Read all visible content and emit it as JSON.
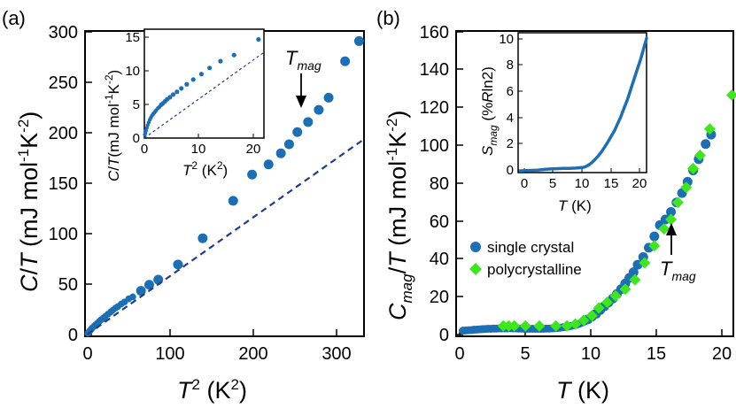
{
  "colors": {
    "single_crystal": "#1c6fb4",
    "polycrystalline": "#3ee61e",
    "fit_line": "#1f3d8c",
    "axis": "#000000"
  },
  "chart_data": [
    {
      "id": "a-main",
      "panel": "(a)",
      "type": "scatter",
      "xlabel": "T^2 (K^2)",
      "ylabel": "C/T (mJ mol^-1 K^-2)",
      "xlim": [
        -3,
        336
      ],
      "ylim": [
        -2,
        300
      ],
      "xticks": [
        "0",
        "100",
        "200",
        "300"
      ],
      "yticks": [
        "0",
        "50",
        "100",
        "150",
        "200",
        "250",
        "300"
      ],
      "annotation": {
        "text": "T_mag",
        "x": 254,
        "y": 226
      },
      "series": [
        {
          "name": "data",
          "marker": "circle",
          "x": [
            0.5,
            1,
            1.5,
            2,
            3,
            4,
            5,
            6,
            8,
            10,
            12,
            14,
            16,
            18,
            20,
            22,
            25,
            28,
            31,
            34,
            37,
            41,
            45,
            50,
            55,
            65,
            75,
            86,
            110,
            140,
            177,
            200,
            220,
            235,
            245,
            255,
            268,
            281,
            293,
            313,
            330
          ],
          "y": [
            1,
            1.5,
            2,
            2.5,
            3.5,
            4.5,
            5.5,
            6.5,
            8,
            9.5,
            11,
            12.5,
            14,
            15,
            16.5,
            18,
            20,
            22,
            24,
            26,
            27.5,
            30,
            32,
            35,
            37,
            43,
            49,
            54,
            69,
            95,
            132,
            158,
            168,
            179,
            188,
            200,
            210,
            222,
            234,
            270,
            290
          ]
        },
        {
          "name": "fit",
          "marker": "dashed-line",
          "x": [
            0,
            336
          ],
          "y": [
            0,
            193
          ]
        }
      ]
    },
    {
      "id": "a-inset",
      "panel": "(a) inset",
      "type": "scatter",
      "xlabel": "T^2 (K^2)",
      "ylabel": "C/T(mJ mol^-1 K^-2)",
      "xlim": [
        0,
        22
      ],
      "ylim": [
        0,
        16
      ],
      "xticks": [
        "0",
        "10",
        "20"
      ],
      "yticks": [
        "0",
        "5",
        "10",
        "15"
      ],
      "series": [
        {
          "name": "data",
          "marker": "circle",
          "x": [
            0.1,
            0.2,
            0.3,
            0.45,
            0.6,
            0.8,
            1.0,
            1.2,
            1.4,
            1.6,
            1.8,
            2.0,
            2.2,
            2.5,
            2.8,
            3.1,
            3.4,
            3.8,
            4.2,
            4.7,
            5.3,
            6.0,
            6.8,
            7.8,
            9.0,
            10.5,
            12.0,
            14.0,
            16.5,
            21.0
          ],
          "y": [
            0.5,
            0.8,
            1.1,
            1.5,
            1.9,
            2.3,
            2.7,
            3.0,
            3.3,
            3.5,
            3.7,
            3.9,
            4.1,
            4.4,
            4.6,
            4.9,
            5.1,
            5.4,
            5.7,
            6.0,
            6.4,
            6.8,
            7.3,
            7.9,
            8.6,
            9.4,
            10.3,
            11.3,
            12.2,
            14.5
          ]
        },
        {
          "name": "fit",
          "marker": "dashed-line",
          "x": [
            0,
            22
          ],
          "y": [
            0,
            12.6
          ]
        }
      ]
    },
    {
      "id": "b-main",
      "panel": "(b)",
      "type": "scatter",
      "xlabel": "T (K)",
      "ylabel": "C_mag/T (mJ mol^-1 K^-2)",
      "xlim": [
        0,
        20
      ],
      "ylim": [
        -2,
        160
      ],
      "xticks": [
        "0",
        "5",
        "10",
        "15",
        "20"
      ],
      "yticks": [
        "0",
        "20",
        "40",
        "60",
        "80",
        "100",
        "120",
        "140",
        "160"
      ],
      "annotation": {
        "text": "T_mag",
        "x": 16.2,
        "y": 58
      },
      "legend": {
        "placement": "middle-left",
        "entries": [
          "single crystal",
          "polycrystalline"
        ]
      },
      "series": [
        {
          "name": "single crystal",
          "marker": "circle",
          "x": [
            0.5,
            0.7,
            0.9,
            1.1,
            1.3,
            1.5,
            1.7,
            1.9,
            2.1,
            2.3,
            2.5,
            2.7,
            2.9,
            3.1,
            3.3,
            3.5,
            3.7,
            3.9,
            4.1,
            4.3,
            4.5,
            4.7,
            4.9,
            5.1,
            5.3,
            5.5,
            5.7,
            5.9,
            6.1,
            6.3,
            6.5,
            6.7,
            6.9,
            7.1,
            7.3,
            7.5,
            7.7,
            7.9,
            8.1,
            8.3,
            8.5,
            8.7,
            8.9,
            9.1,
            9.3,
            9.5,
            9.8,
            10.1,
            10.4,
            10.7,
            11.0,
            11.3,
            11.6,
            11.9,
            12.2,
            12.5,
            12.8,
            13.1,
            13.5,
            13.9,
            14.3,
            14.7,
            15.1,
            15.5,
            15.9,
            16.3,
            16.7,
            17.1,
            17.5,
            18.0,
            18.4
          ],
          "y": [
            1.0,
            1.1,
            1.2,
            1.3,
            1.5,
            1.6,
            1.7,
            1.8,
            1.9,
            2.0,
            2.0,
            2.1,
            2.1,
            2.2,
            2.2,
            2.2,
            2.2,
            2.3,
            2.2,
            2.2,
            2.1,
            2.1,
            2.0,
            2.0,
            2.0,
            2.0,
            2.0,
            2.0,
            2.0,
            2.0,
            2.1,
            2.1,
            2.2,
            2.3,
            2.4,
            2.6,
            2.8,
            3.0,
            3.2,
            3.5,
            3.8,
            4.2,
            4.7,
            5.3,
            6.0,
            7.0,
            8.5,
            10,
            12,
            14,
            16,
            18,
            20.5,
            23,
            26,
            29,
            32,
            36,
            40,
            45,
            51,
            57,
            60,
            64,
            69,
            74,
            80,
            86,
            92,
            100,
            105
          ]
        },
        {
          "name": "polycrystalline",
          "marker": "diamond",
          "x": [
            3.4,
            3.8,
            4.2,
            5.0,
            6.0,
            7.2,
            8.0,
            8.6,
            9.2,
            9.8,
            10.3,
            10.9,
            11.5,
            12.2,
            12.9,
            13.6,
            14.3,
            15.0,
            15.5,
            16.0,
            16.6,
            17.1,
            17.6,
            18.3,
            19.9
          ],
          "y": [
            3.5,
            3.5,
            3.5,
            3.5,
            3.5,
            3.5,
            3.6,
            4.5,
            6.5,
            9,
            13,
            16,
            19.5,
            23,
            28,
            37,
            46,
            55,
            60,
            69,
            77,
            87,
            94,
            108,
            126
          ]
        }
      ]
    },
    {
      "id": "b-inset",
      "panel": "(b) inset",
      "type": "line",
      "xlabel": "T (K)",
      "ylabel": "S_mag (%R ln2)",
      "xlim": [
        0,
        20
      ],
      "ylim": [
        0,
        10
      ],
      "xticks": [
        "0",
        "5",
        "10",
        "15",
        "20"
      ],
      "yticks": [
        "0",
        "2",
        "4",
        "6",
        "8",
        "10"
      ],
      "series": [
        {
          "name": "S_mag",
          "x": [
            0.3,
            1,
            2,
            3,
            4,
            5,
            6,
            7,
            8,
            9,
            10,
            10.5,
            11,
            11.5,
            12,
            12.5,
            13,
            13.5,
            14,
            14.5,
            15,
            15.5,
            16,
            16.5,
            17,
            17.5,
            18,
            18.5,
            19,
            19.5,
            20
          ],
          "y": [
            0.12,
            0.14,
            0.16,
            0.18,
            0.22,
            0.26,
            0.28,
            0.3,
            0.3,
            0.32,
            0.36,
            0.42,
            0.55,
            0.72,
            0.95,
            1.2,
            1.5,
            1.85,
            2.2,
            2.6,
            3.0,
            3.5,
            4.0,
            4.6,
            5.2,
            5.9,
            6.6,
            7.3,
            8.0,
            8.8,
            9.6
          ]
        }
      ]
    }
  ]
}
